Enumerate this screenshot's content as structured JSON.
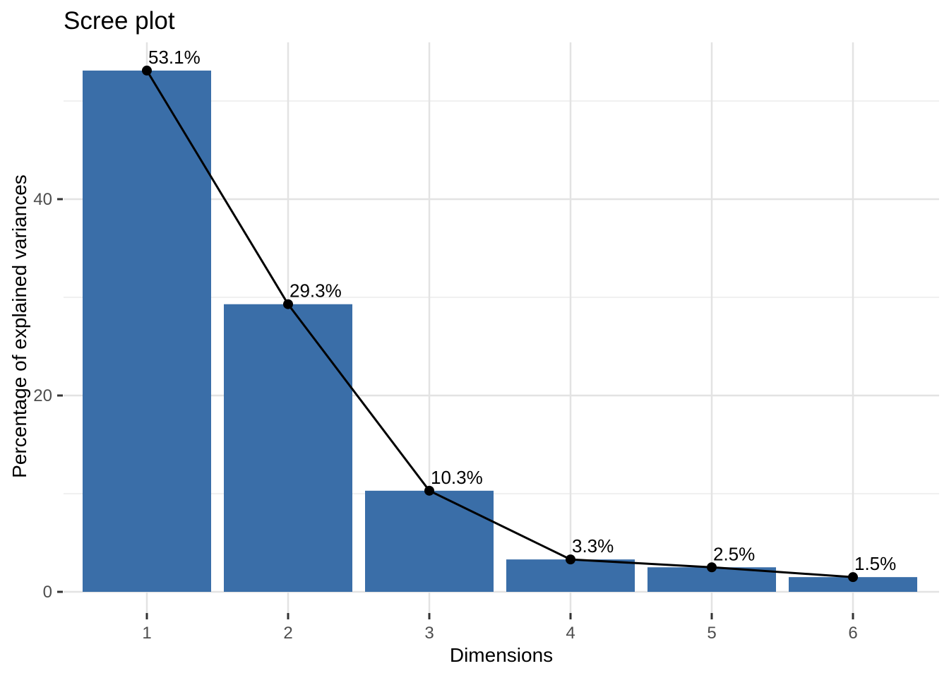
{
  "chart_data": {
    "type": "bar",
    "overlay": "line",
    "title": "Scree plot",
    "xlabel": "Dimensions",
    "ylabel": "Percentage of explained variances",
    "categories": [
      "1",
      "2",
      "3",
      "4",
      "5",
      "6"
    ],
    "values": [
      53.1,
      29.3,
      10.3,
      3.3,
      2.5,
      1.5
    ],
    "point_labels": [
      "53.1%",
      "29.3%",
      "10.3%",
      "3.3%",
      "2.5%",
      "1.5%"
    ],
    "y_major_ticks": [
      0,
      20,
      40
    ],
    "y_minor_gridlines": [
      10,
      30,
      50
    ],
    "ylim": [
      -2.2,
      56
    ],
    "grid": true,
    "legend": "none",
    "colors": {
      "background": "#ffffff",
      "bar_fill": "#3A6EA8",
      "line": "#000000",
      "point": "#000000",
      "grid_major": "#e3e3e3",
      "grid_minor": "#f0f0f0",
      "tick_label": "#4d4d4d",
      "tick_mark": "#333333",
      "title": "#000000"
    }
  }
}
